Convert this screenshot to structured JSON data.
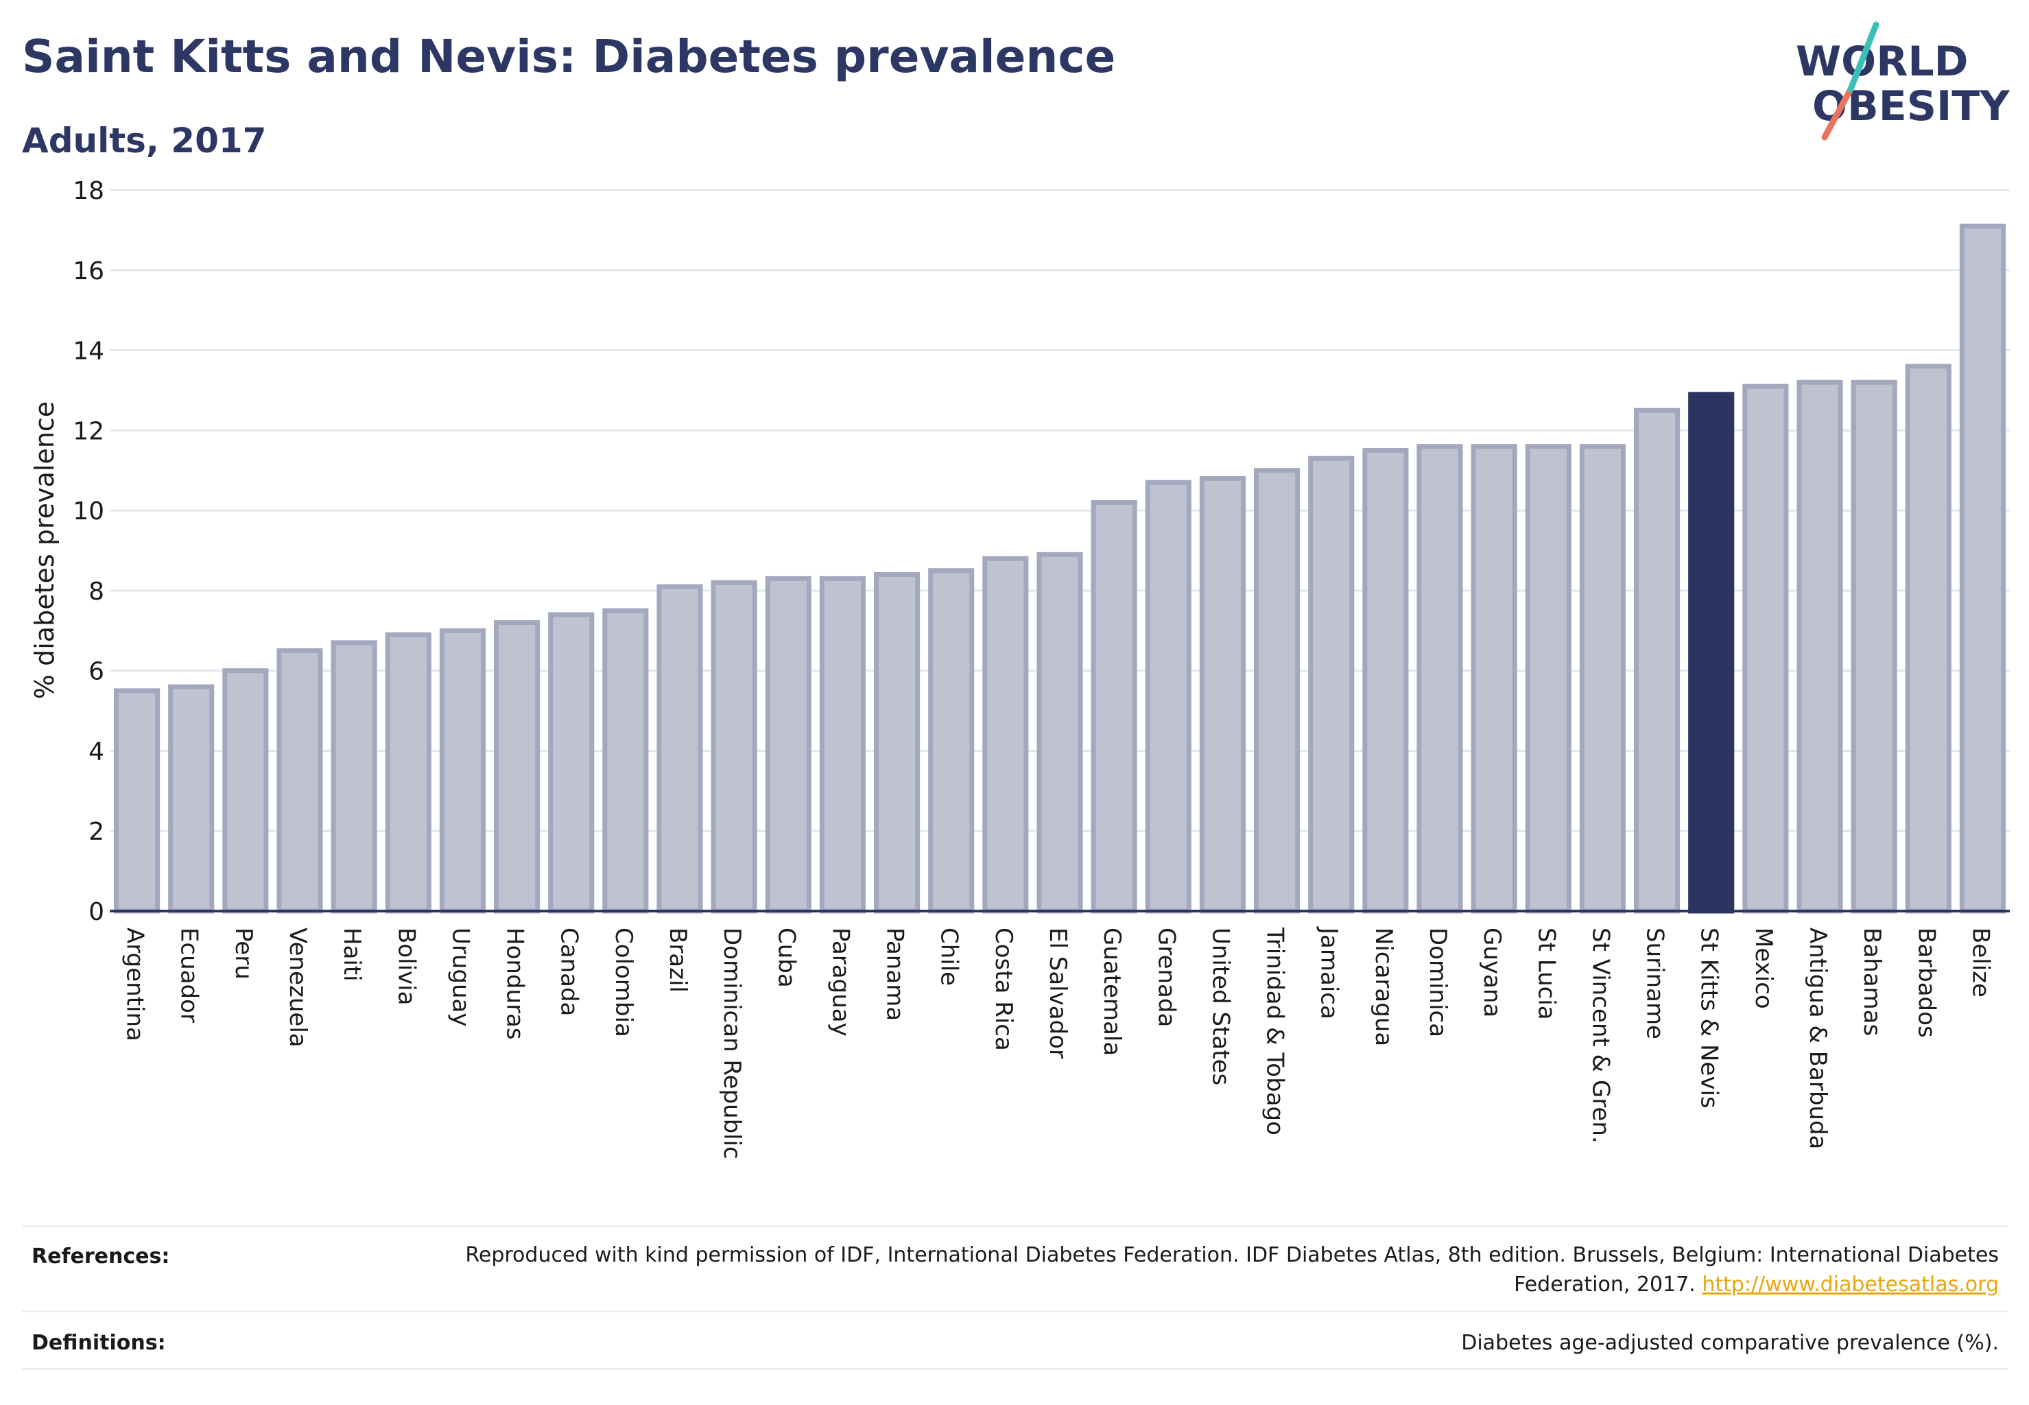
{
  "title": "Saint Kitts and Nevis: Diabetes prevalence",
  "subtitle": "Adults, 2017",
  "logo": {
    "line1": "WORLD",
    "line2": "OBESITY"
  },
  "colors": {
    "bar": "#bfc2cf",
    "bar_stroke": "#a3a8be",
    "highlight": "#2b3561",
    "axis": "#2b3561",
    "grid": "#e4e6ee"
  },
  "chart_data": {
    "type": "bar",
    "ylabel": "% diabetes prevalence",
    "ylim": [
      0,
      18
    ],
    "yticks": [
      0,
      2,
      4,
      6,
      8,
      10,
      12,
      14,
      16,
      18
    ],
    "grid": true,
    "highlight": "St Kitts & Nevis",
    "categories": [
      "Argentina",
      "Ecuador",
      "Peru",
      "Venezuela",
      "Haiti",
      "Bolivia",
      "Uruguay",
      "Honduras",
      "Canada",
      "Colombia",
      "Brazil",
      "Dominican Republic",
      "Cuba",
      "Paraguay",
      "Panama",
      "Chile",
      "Costa Rica",
      "El Salvador",
      "Guatemala",
      "Grenada",
      "United States",
      "Trinidad & Tobago",
      "Jamaica",
      "Nicaragua",
      "Dominica",
      "Guyana",
      "St Lucia",
      "St Vincent & Gren.",
      "Suriname",
      "St Kitts & Nevis",
      "Mexico",
      "Antigua & Barbuda",
      "Bahamas",
      "Barbados",
      "Belize"
    ],
    "values": [
      5.5,
      5.6,
      6.0,
      6.5,
      6.7,
      6.9,
      7.0,
      7.2,
      7.4,
      7.5,
      8.1,
      8.2,
      8.3,
      8.3,
      8.4,
      8.5,
      8.8,
      8.9,
      10.2,
      10.7,
      10.8,
      11.0,
      11.3,
      11.5,
      11.6,
      11.6,
      11.6,
      11.6,
      12.5,
      12.9,
      13.1,
      13.2,
      13.2,
      13.6,
      17.1
    ]
  },
  "references": {
    "label": "References:",
    "text": "Reproduced with kind permission of IDF, International Diabetes Federation. IDF Diabetes Atlas, 8th edition. Brussels, Belgium: International Diabetes Federation, 2017.",
    "link": "http://www.diabetesatlas.org"
  },
  "definitions": {
    "label": "Definitions:",
    "text": "Diabetes age-adjusted comparative prevalence (%)."
  }
}
